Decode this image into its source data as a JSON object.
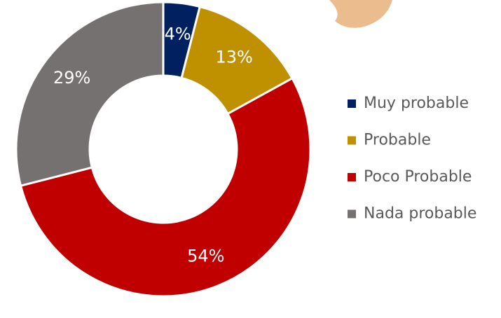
{
  "chart_data": {
    "type": "donut",
    "categories": [
      "Muy probable",
      "Probable",
      "Poco Probable",
      "Nada probable"
    ],
    "values": [
      4,
      13,
      54,
      29
    ],
    "value_labels": [
      "4%",
      "13%",
      "54%",
      "29%"
    ],
    "colors": [
      "#002060",
      "#bf9000",
      "#c00000",
      "#767171"
    ],
    "legend": "right"
  }
}
